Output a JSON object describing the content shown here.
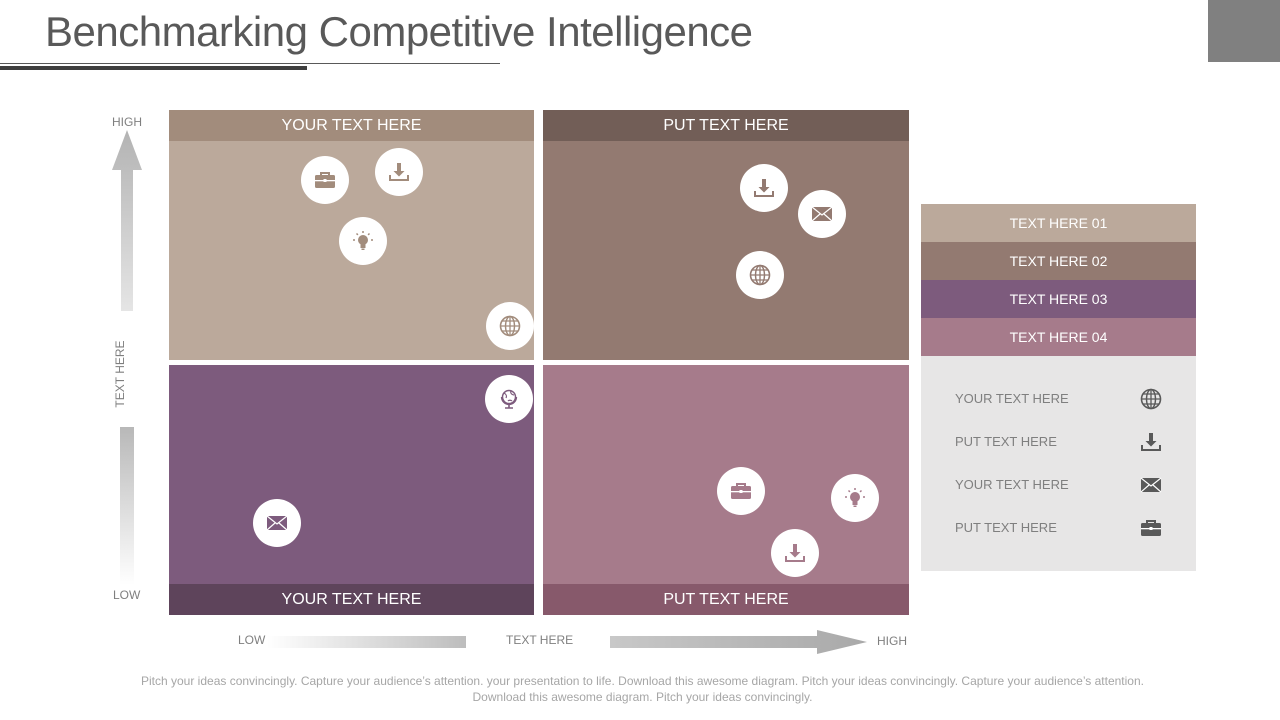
{
  "title": "Benchmarking Competitive Intelligence",
  "axes": {
    "y_high": "HIGH",
    "y_low": "LOW",
    "y_label": "TEXT HERE",
    "x_low": "LOW",
    "x_high": "HIGH",
    "x_label": "TEXT HERE"
  },
  "quadrants": {
    "top_left": {
      "label": "YOUR TEXT HERE",
      "color": "#bba99b",
      "header_color": "#a28c7c"
    },
    "top_right": {
      "label": "PUT TEXT HERE",
      "color": "#937a71",
      "header_color": "#725e57"
    },
    "bottom_left": {
      "label": "YOUR TEXT HERE",
      "color": "#7d5b7d",
      "header_color": "#5e445b"
    },
    "bottom_right": {
      "label": "PUT TEXT HERE",
      "color": "#a67b8b",
      "header_color": "#87596b"
    }
  },
  "quadrant_icons": {
    "top_left": [
      "briefcase-icon",
      "download-icon",
      "lightbulb-icon",
      "globe-icon"
    ],
    "top_right": [
      "download-icon",
      "envelope-icon",
      "globe-icon"
    ],
    "bottom_left": [
      "globe-stand-icon",
      "envelope-icon"
    ],
    "bottom_right": [
      "briefcase-icon",
      "lightbulb-icon",
      "download-icon"
    ]
  },
  "legend": {
    "items": [
      {
        "label": "TEXT HERE 01",
        "color": "#bba99b"
      },
      {
        "label": "TEXT HERE 02",
        "color": "#937a71"
      },
      {
        "label": "TEXT HERE 03",
        "color": "#7d5b7d"
      },
      {
        "label": "TEXT HERE 04",
        "color": "#a67b8b"
      }
    ],
    "rows": [
      {
        "label": "YOUR TEXT HERE",
        "icon": "globe-icon"
      },
      {
        "label": "PUT TEXT HERE",
        "icon": "download-icon"
      },
      {
        "label": "YOUR TEXT HERE",
        "icon": "envelope-icon"
      },
      {
        "label": "PUT TEXT HERE",
        "icon": "briefcase-icon"
      }
    ]
  },
  "footer": "Pitch your ideas convincingly. Capture your audience’s attention. your presentation to life. Download this awesome diagram. Pitch your ideas convincingly. Capture your audience’s attention. Download this awesome diagram. Pitch your ideas convincingly."
}
